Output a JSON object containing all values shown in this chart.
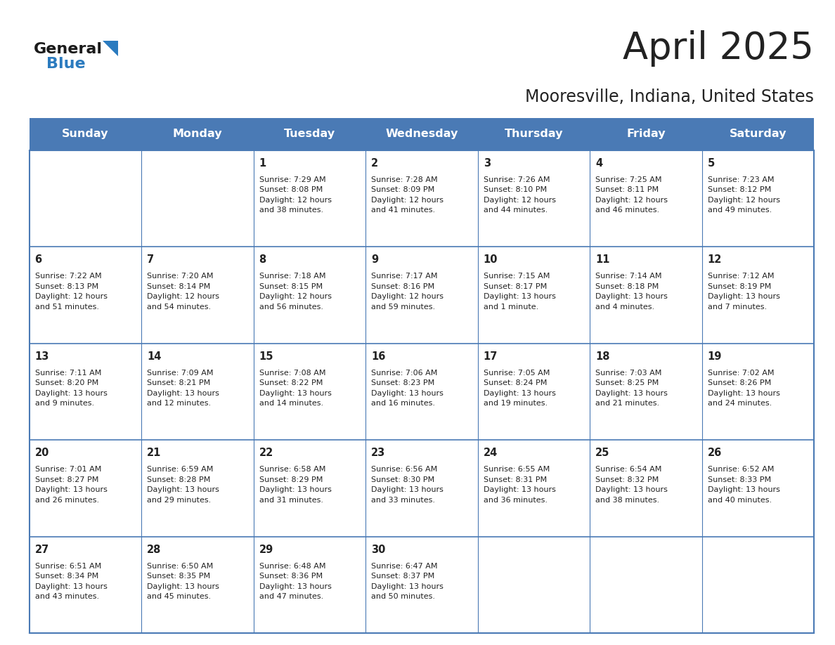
{
  "title": "April 2025",
  "subtitle": "Mooresville, Indiana, United States",
  "header_bg": "#4a7ab5",
  "header_text_color": "#ffffff",
  "cell_bg": "#ffffff",
  "text_color": "#222222",
  "line_color": "#4a7ab5",
  "days_of_week": [
    "Sunday",
    "Monday",
    "Tuesday",
    "Wednesday",
    "Thursday",
    "Friday",
    "Saturday"
  ],
  "logo_general_color": "#1a1a1a",
  "logo_blue_color": "#2b7bbf",
  "title_fontsize": 38,
  "subtitle_fontsize": 17,
  "header_fontsize": 11.5,
  "day_num_fontsize": 10.5,
  "info_fontsize": 8.0,
  "calendar": [
    [
      {
        "day": "",
        "info": ""
      },
      {
        "day": "",
        "info": ""
      },
      {
        "day": "1",
        "info": "Sunrise: 7:29 AM\nSunset: 8:08 PM\nDaylight: 12 hours\nand 38 minutes."
      },
      {
        "day": "2",
        "info": "Sunrise: 7:28 AM\nSunset: 8:09 PM\nDaylight: 12 hours\nand 41 minutes."
      },
      {
        "day": "3",
        "info": "Sunrise: 7:26 AM\nSunset: 8:10 PM\nDaylight: 12 hours\nand 44 minutes."
      },
      {
        "day": "4",
        "info": "Sunrise: 7:25 AM\nSunset: 8:11 PM\nDaylight: 12 hours\nand 46 minutes."
      },
      {
        "day": "5",
        "info": "Sunrise: 7:23 AM\nSunset: 8:12 PM\nDaylight: 12 hours\nand 49 minutes."
      }
    ],
    [
      {
        "day": "6",
        "info": "Sunrise: 7:22 AM\nSunset: 8:13 PM\nDaylight: 12 hours\nand 51 minutes."
      },
      {
        "day": "7",
        "info": "Sunrise: 7:20 AM\nSunset: 8:14 PM\nDaylight: 12 hours\nand 54 minutes."
      },
      {
        "day": "8",
        "info": "Sunrise: 7:18 AM\nSunset: 8:15 PM\nDaylight: 12 hours\nand 56 minutes."
      },
      {
        "day": "9",
        "info": "Sunrise: 7:17 AM\nSunset: 8:16 PM\nDaylight: 12 hours\nand 59 minutes."
      },
      {
        "day": "10",
        "info": "Sunrise: 7:15 AM\nSunset: 8:17 PM\nDaylight: 13 hours\nand 1 minute."
      },
      {
        "day": "11",
        "info": "Sunrise: 7:14 AM\nSunset: 8:18 PM\nDaylight: 13 hours\nand 4 minutes."
      },
      {
        "day": "12",
        "info": "Sunrise: 7:12 AM\nSunset: 8:19 PM\nDaylight: 13 hours\nand 7 minutes."
      }
    ],
    [
      {
        "day": "13",
        "info": "Sunrise: 7:11 AM\nSunset: 8:20 PM\nDaylight: 13 hours\nand 9 minutes."
      },
      {
        "day": "14",
        "info": "Sunrise: 7:09 AM\nSunset: 8:21 PM\nDaylight: 13 hours\nand 12 minutes."
      },
      {
        "day": "15",
        "info": "Sunrise: 7:08 AM\nSunset: 8:22 PM\nDaylight: 13 hours\nand 14 minutes."
      },
      {
        "day": "16",
        "info": "Sunrise: 7:06 AM\nSunset: 8:23 PM\nDaylight: 13 hours\nand 16 minutes."
      },
      {
        "day": "17",
        "info": "Sunrise: 7:05 AM\nSunset: 8:24 PM\nDaylight: 13 hours\nand 19 minutes."
      },
      {
        "day": "18",
        "info": "Sunrise: 7:03 AM\nSunset: 8:25 PM\nDaylight: 13 hours\nand 21 minutes."
      },
      {
        "day": "19",
        "info": "Sunrise: 7:02 AM\nSunset: 8:26 PM\nDaylight: 13 hours\nand 24 minutes."
      }
    ],
    [
      {
        "day": "20",
        "info": "Sunrise: 7:01 AM\nSunset: 8:27 PM\nDaylight: 13 hours\nand 26 minutes."
      },
      {
        "day": "21",
        "info": "Sunrise: 6:59 AM\nSunset: 8:28 PM\nDaylight: 13 hours\nand 29 minutes."
      },
      {
        "day": "22",
        "info": "Sunrise: 6:58 AM\nSunset: 8:29 PM\nDaylight: 13 hours\nand 31 minutes."
      },
      {
        "day": "23",
        "info": "Sunrise: 6:56 AM\nSunset: 8:30 PM\nDaylight: 13 hours\nand 33 minutes."
      },
      {
        "day": "24",
        "info": "Sunrise: 6:55 AM\nSunset: 8:31 PM\nDaylight: 13 hours\nand 36 minutes."
      },
      {
        "day": "25",
        "info": "Sunrise: 6:54 AM\nSunset: 8:32 PM\nDaylight: 13 hours\nand 38 minutes."
      },
      {
        "day": "26",
        "info": "Sunrise: 6:52 AM\nSunset: 8:33 PM\nDaylight: 13 hours\nand 40 minutes."
      }
    ],
    [
      {
        "day": "27",
        "info": "Sunrise: 6:51 AM\nSunset: 8:34 PM\nDaylight: 13 hours\nand 43 minutes."
      },
      {
        "day": "28",
        "info": "Sunrise: 6:50 AM\nSunset: 8:35 PM\nDaylight: 13 hours\nand 45 minutes."
      },
      {
        "day": "29",
        "info": "Sunrise: 6:48 AM\nSunset: 8:36 PM\nDaylight: 13 hours\nand 47 minutes."
      },
      {
        "day": "30",
        "info": "Sunrise: 6:47 AM\nSunset: 8:37 PM\nDaylight: 13 hours\nand 50 minutes."
      },
      {
        "day": "",
        "info": ""
      },
      {
        "day": "",
        "info": ""
      },
      {
        "day": "",
        "info": ""
      }
    ]
  ]
}
